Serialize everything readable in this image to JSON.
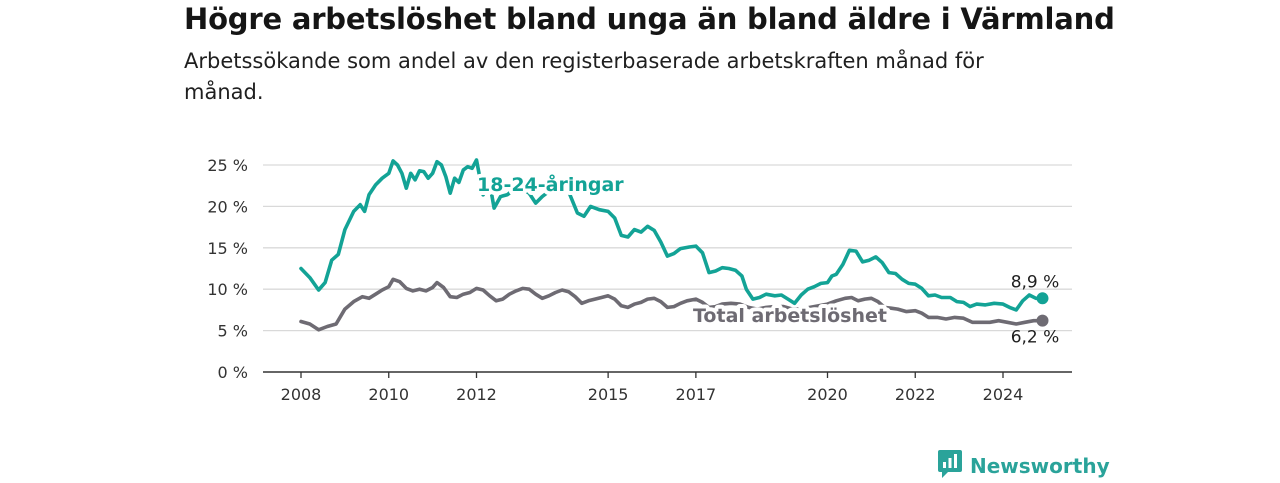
{
  "header": {
    "title": "Högre arbetslöshet bland unga än bland äldre i Värmland",
    "subtitle": "Arbetssökande som andel av den registerbaserade arbetskraften månad för månad."
  },
  "brand": {
    "name": "Newsworthy",
    "icon": "newsworthy-logo-icon"
  },
  "colors": {
    "youth": "#13a396",
    "total": "#6e6b73",
    "grid": "#d9d9d9",
    "axis": "#333333"
  },
  "chart_data": {
    "type": "line",
    "title": "Högre arbetslöshet bland unga än bland äldre i Värmland",
    "subtitle": "Arbetssökande som andel av den registerbaserade arbetskraften månad för månad.",
    "xlabel": "",
    "ylabel": "",
    "xlim": [
      2007.5,
      2025.75
    ],
    "ylim": [
      0,
      25
    ],
    "x_ticks": [
      2008,
      2010,
      2012,
      2015,
      2017,
      2020,
      2022,
      2024
    ],
    "y_ticks": [
      0,
      5,
      10,
      15,
      20,
      25
    ],
    "y_tick_labels": [
      "0 %",
      "5 %",
      "10 %",
      "15 %",
      "20 %",
      "25 %"
    ],
    "grid": "horizontal",
    "series": [
      {
        "name": "18-24-åringar",
        "color": "#13a396",
        "end_label": "8,9 %",
        "points": [
          [
            2008.0,
            12.5
          ],
          [
            2008.2,
            11.4
          ],
          [
            2008.4,
            9.9
          ],
          [
            2008.55,
            10.8
          ],
          [
            2008.7,
            13.5
          ],
          [
            2008.85,
            14.2
          ],
          [
            2009.0,
            17.2
          ],
          [
            2009.2,
            19.4
          ],
          [
            2009.35,
            20.2
          ],
          [
            2009.45,
            19.4
          ],
          [
            2009.55,
            21.4
          ],
          [
            2009.7,
            22.6
          ],
          [
            2009.85,
            23.4
          ],
          [
            2010.0,
            24.0
          ],
          [
            2010.1,
            25.5
          ],
          [
            2010.2,
            25.0
          ],
          [
            2010.3,
            24.0
          ],
          [
            2010.4,
            22.2
          ],
          [
            2010.5,
            24.0
          ],
          [
            2010.6,
            23.2
          ],
          [
            2010.7,
            24.3
          ],
          [
            2010.8,
            24.2
          ],
          [
            2010.9,
            23.4
          ],
          [
            2011.0,
            24.0
          ],
          [
            2011.1,
            25.4
          ],
          [
            2011.2,
            25.0
          ],
          [
            2011.3,
            23.6
          ],
          [
            2011.4,
            21.6
          ],
          [
            2011.5,
            23.4
          ],
          [
            2011.6,
            22.9
          ],
          [
            2011.7,
            24.4
          ],
          [
            2011.8,
            24.8
          ],
          [
            2011.9,
            24.6
          ],
          [
            2012.0,
            25.6
          ],
          [
            2012.15,
            21.4
          ],
          [
            2012.3,
            22.8
          ],
          [
            2012.4,
            19.8
          ],
          [
            2012.55,
            21.2
          ],
          [
            2012.7,
            21.4
          ],
          [
            2012.85,
            22.0
          ],
          [
            2013.0,
            22.2
          ],
          [
            2013.2,
            21.6
          ],
          [
            2013.35,
            20.4
          ],
          [
            2013.5,
            21.2
          ],
          [
            2013.7,
            22.0
          ],
          [
            2013.9,
            22.4
          ],
          [
            2014.1,
            21.8
          ],
          [
            2014.3,
            19.2
          ],
          [
            2014.45,
            18.8
          ],
          [
            2014.6,
            20.0
          ],
          [
            2014.8,
            19.6
          ],
          [
            2015.0,
            19.4
          ],
          [
            2015.15,
            18.6
          ],
          [
            2015.3,
            16.5
          ],
          [
            2015.45,
            16.3
          ],
          [
            2015.6,
            17.2
          ],
          [
            2015.75,
            16.9
          ],
          [
            2015.9,
            17.6
          ],
          [
            2016.05,
            17.1
          ],
          [
            2016.2,
            15.7
          ],
          [
            2016.35,
            14.0
          ],
          [
            2016.5,
            14.3
          ],
          [
            2016.65,
            14.9
          ],
          [
            2016.85,
            15.1
          ],
          [
            2017.0,
            15.2
          ],
          [
            2017.15,
            14.4
          ],
          [
            2017.3,
            12.0
          ],
          [
            2017.45,
            12.2
          ],
          [
            2017.6,
            12.6
          ],
          [
            2017.75,
            12.5
          ],
          [
            2017.9,
            12.3
          ],
          [
            2018.05,
            11.6
          ],
          [
            2018.15,
            10.0
          ],
          [
            2018.3,
            8.8
          ],
          [
            2018.45,
            9.0
          ],
          [
            2018.6,
            9.4
          ],
          [
            2018.8,
            9.2
          ],
          [
            2018.95,
            9.3
          ],
          [
            2019.1,
            8.8
          ],
          [
            2019.25,
            8.3
          ],
          [
            2019.4,
            9.3
          ],
          [
            2019.55,
            10.0
          ],
          [
            2019.7,
            10.3
          ],
          [
            2019.85,
            10.7
          ],
          [
            2020.0,
            10.8
          ],
          [
            2020.1,
            11.6
          ],
          [
            2020.2,
            11.8
          ],
          [
            2020.35,
            13.0
          ],
          [
            2020.5,
            14.7
          ],
          [
            2020.65,
            14.6
          ],
          [
            2020.8,
            13.3
          ],
          [
            2020.95,
            13.5
          ],
          [
            2021.1,
            13.9
          ],
          [
            2021.25,
            13.2
          ],
          [
            2021.4,
            12.0
          ],
          [
            2021.55,
            11.9
          ],
          [
            2021.7,
            11.2
          ],
          [
            2021.85,
            10.7
          ],
          [
            2022.0,
            10.6
          ],
          [
            2022.15,
            10.1
          ],
          [
            2022.3,
            9.2
          ],
          [
            2022.45,
            9.3
          ],
          [
            2022.6,
            9.0
          ],
          [
            2022.8,
            9.0
          ],
          [
            2022.95,
            8.5
          ],
          [
            2023.1,
            8.4
          ],
          [
            2023.25,
            7.9
          ],
          [
            2023.4,
            8.2
          ],
          [
            2023.6,
            8.1
          ],
          [
            2023.8,
            8.3
          ],
          [
            2024.0,
            8.2
          ],
          [
            2024.15,
            7.8
          ],
          [
            2024.3,
            7.5
          ],
          [
            2024.45,
            8.6
          ],
          [
            2024.6,
            9.3
          ],
          [
            2024.75,
            8.9
          ],
          [
            2024.9,
            8.9
          ]
        ]
      },
      {
        "name": "Total arbetslöshet",
        "color": "#6e6b73",
        "end_label": "6,2 %",
        "points": [
          [
            2008.0,
            6.1
          ],
          [
            2008.2,
            5.8
          ],
          [
            2008.4,
            5.1
          ],
          [
            2008.6,
            5.5
          ],
          [
            2008.8,
            5.8
          ],
          [
            2009.0,
            7.6
          ],
          [
            2009.2,
            8.5
          ],
          [
            2009.4,
            9.1
          ],
          [
            2009.55,
            8.9
          ],
          [
            2009.7,
            9.4
          ],
          [
            2009.85,
            9.9
          ],
          [
            2010.0,
            10.3
          ],
          [
            2010.1,
            11.2
          ],
          [
            2010.25,
            10.9
          ],
          [
            2010.4,
            10.1
          ],
          [
            2010.55,
            9.8
          ],
          [
            2010.7,
            10.0
          ],
          [
            2010.85,
            9.8
          ],
          [
            2011.0,
            10.2
          ],
          [
            2011.1,
            10.8
          ],
          [
            2011.25,
            10.2
          ],
          [
            2011.4,
            9.1
          ],
          [
            2011.55,
            9.0
          ],
          [
            2011.7,
            9.4
          ],
          [
            2011.85,
            9.6
          ],
          [
            2012.0,
            10.1
          ],
          [
            2012.15,
            9.9
          ],
          [
            2012.3,
            9.2
          ],
          [
            2012.45,
            8.6
          ],
          [
            2012.6,
            8.8
          ],
          [
            2012.75,
            9.4
          ],
          [
            2012.9,
            9.8
          ],
          [
            2013.05,
            10.1
          ],
          [
            2013.2,
            10.0
          ],
          [
            2013.35,
            9.4
          ],
          [
            2013.5,
            8.9
          ],
          [
            2013.65,
            9.2
          ],
          [
            2013.8,
            9.6
          ],
          [
            2013.95,
            9.9
          ],
          [
            2014.1,
            9.7
          ],
          [
            2014.25,
            9.1
          ],
          [
            2014.4,
            8.3
          ],
          [
            2014.55,
            8.6
          ],
          [
            2014.7,
            8.8
          ],
          [
            2014.85,
            9.0
          ],
          [
            2015.0,
            9.2
          ],
          [
            2015.15,
            8.8
          ],
          [
            2015.3,
            8.0
          ],
          [
            2015.45,
            7.8
          ],
          [
            2015.6,
            8.2
          ],
          [
            2015.75,
            8.4
          ],
          [
            2015.9,
            8.8
          ],
          [
            2016.05,
            8.9
          ],
          [
            2016.2,
            8.5
          ],
          [
            2016.35,
            7.8
          ],
          [
            2016.5,
            7.9
          ],
          [
            2016.65,
            8.3
          ],
          [
            2016.8,
            8.6
          ],
          [
            2017.0,
            8.8
          ],
          [
            2017.15,
            8.4
          ],
          [
            2017.3,
            7.8
          ],
          [
            2017.45,
            7.9
          ],
          [
            2017.6,
            8.2
          ],
          [
            2017.8,
            8.3
          ],
          [
            2018.0,
            8.2
          ],
          [
            2018.2,
            7.8
          ],
          [
            2018.4,
            7.6
          ],
          [
            2018.6,
            7.8
          ],
          [
            2018.8,
            7.9
          ],
          [
            2019.0,
            7.9
          ],
          [
            2019.2,
            7.6
          ],
          [
            2019.4,
            7.6
          ],
          [
            2019.6,
            7.8
          ],
          [
            2019.8,
            8.0
          ],
          [
            2020.0,
            8.2
          ],
          [
            2020.2,
            8.6
          ],
          [
            2020.4,
            8.9
          ],
          [
            2020.55,
            9.0
          ],
          [
            2020.7,
            8.6
          ],
          [
            2020.85,
            8.8
          ],
          [
            2021.0,
            8.9
          ],
          [
            2021.15,
            8.5
          ],
          [
            2021.3,
            7.8
          ],
          [
            2021.45,
            7.7
          ],
          [
            2021.6,
            7.6
          ],
          [
            2021.8,
            7.3
          ],
          [
            2022.0,
            7.4
          ],
          [
            2022.15,
            7.1
          ],
          [
            2022.3,
            6.6
          ],
          [
            2022.5,
            6.6
          ],
          [
            2022.7,
            6.4
          ],
          [
            2022.9,
            6.6
          ],
          [
            2023.1,
            6.5
          ],
          [
            2023.3,
            6.0
          ],
          [
            2023.5,
            6.0
          ],
          [
            2023.7,
            6.0
          ],
          [
            2023.9,
            6.2
          ],
          [
            2024.1,
            6.0
          ],
          [
            2024.3,
            5.8
          ],
          [
            2024.5,
            6.0
          ],
          [
            2024.7,
            6.2
          ],
          [
            2024.9,
            6.2
          ]
        ]
      }
    ]
  }
}
